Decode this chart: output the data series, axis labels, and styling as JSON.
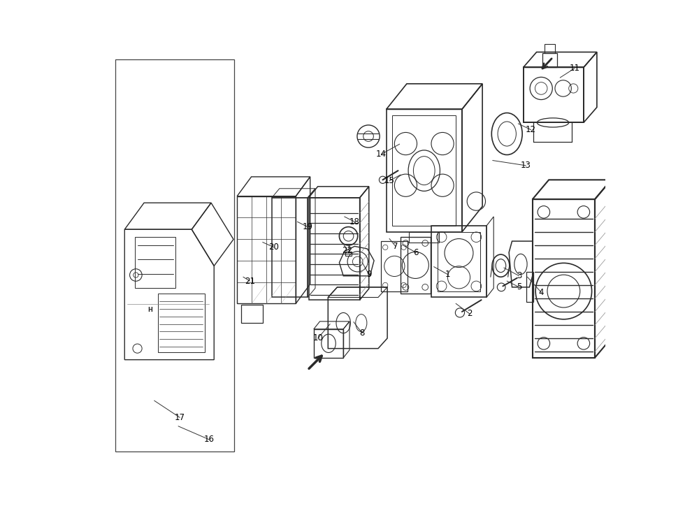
{
  "background_color": "#ffffff",
  "line_color": "#2a2a2a",
  "label_color": "#000000",
  "fig_width": 10.0,
  "fig_height": 7.34,
  "labels": [
    [
      1,
      0.692,
      0.465,
      0.665,
      0.48
    ],
    [
      2,
      0.735,
      0.388,
      0.708,
      0.408
    ],
    [
      3,
      0.832,
      0.462,
      0.802,
      0.478
    ],
    [
      4,
      0.875,
      0.43,
      0.848,
      0.46
    ],
    [
      5,
      0.832,
      0.44,
      0.808,
      0.452
    ],
    [
      6,
      0.63,
      0.508,
      0.608,
      0.52
    ],
    [
      7,
      0.59,
      0.52,
      0.578,
      0.535
    ],
    [
      8,
      0.525,
      0.35,
      0.508,
      0.372
    ],
    [
      9,
      0.538,
      0.465,
      0.525,
      0.488
    ],
    [
      10,
      0.438,
      0.34,
      0.462,
      0.368
    ],
    [
      11,
      0.94,
      0.868,
      0.912,
      0.85
    ],
    [
      12,
      0.855,
      0.748,
      0.83,
      0.76
    ],
    [
      13,
      0.845,
      0.678,
      0.78,
      0.688
    ],
    [
      14,
      0.562,
      0.7,
      0.598,
      0.72
    ],
    [
      15,
      0.578,
      0.648,
      0.6,
      0.66
    ],
    [
      16,
      0.225,
      0.142,
      0.165,
      0.168
    ],
    [
      17,
      0.168,
      0.185,
      0.118,
      0.218
    ],
    [
      18,
      0.51,
      0.568,
      0.49,
      0.578
    ],
    [
      19,
      0.418,
      0.558,
      0.398,
      0.568
    ],
    [
      20,
      0.352,
      0.518,
      0.33,
      0.528
    ],
    [
      21,
      0.305,
      0.452,
      0.292,
      0.46
    ],
    [
      22,
      0.495,
      0.512,
      0.488,
      0.525
    ]
  ]
}
